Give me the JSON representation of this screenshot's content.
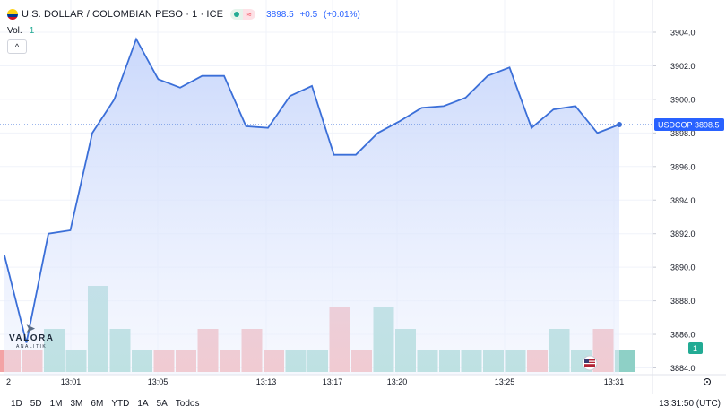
{
  "header": {
    "title": "U.S. DOLLAR / COLOMBIAN PESO · 1 · ICE",
    "last": "3898.5",
    "change": "+0.5",
    "change_pct": "(+0.01%)"
  },
  "volume": {
    "label": "Vol.",
    "value": "1"
  },
  "collapse_label": "^",
  "price_label": {
    "symbol": "USDCOP",
    "value": "3898.5"
  },
  "volume_badge": "1",
  "timeframes": [
    "1D",
    "5D",
    "1M",
    "3M",
    "6M",
    "YTD",
    "1A",
    "5A",
    "Todos"
  ],
  "clock": "13:31:50 (UTC)",
  "logo": {
    "word": "VALORA",
    "sub": "ANALITIK"
  },
  "colors": {
    "line": "#3b6fd8",
    "up": "#8ed0c6",
    "down": "#f3a3a5",
    "accent": "#2962ff"
  },
  "chart_data": {
    "type": "area",
    "x_ticks": [
      "2",
      "13:01",
      "13:05",
      "13:13",
      "13:17",
      "13:20",
      "13:25",
      "13:31"
    ],
    "y_ticks": [
      "3904.0",
      "3902.0",
      "3900.0",
      "3898.0",
      "3896.0",
      "3894.0",
      "3892.0",
      "3890.0",
      "3888.0",
      "3886.0",
      "3884.0"
    ],
    "ylim": [
      3884.0,
      3904.8
    ],
    "price": [
      3890.7,
      3885.5,
      3892.0,
      3892.2,
      3898.0,
      3900.0,
      3903.6,
      3901.2,
      3900.7,
      3901.4,
      3901.4,
      3898.4,
      3898.3,
      3900.2,
      3900.8,
      3896.7,
      3896.7,
      3898.0,
      3898.7,
      3899.5,
      3899.6,
      3900.1,
      3901.4,
      3901.9,
      3898.3,
      3899.4,
      3899.6,
      3898.0,
      3898.5
    ],
    "volume": [
      {
        "v": 1,
        "up": false
      },
      {
        "v": 1,
        "up": false
      },
      {
        "v": 2,
        "up": true
      },
      {
        "v": 1,
        "up": true
      },
      {
        "v": 4,
        "up": true
      },
      {
        "v": 2,
        "up": true
      },
      {
        "v": 1,
        "up": true
      },
      {
        "v": 1,
        "up": false
      },
      {
        "v": 1,
        "up": false
      },
      {
        "v": 2,
        "up": false
      },
      {
        "v": 1,
        "up": false
      },
      {
        "v": 2,
        "up": false
      },
      {
        "v": 1,
        "up": false
      },
      {
        "v": 1,
        "up": true
      },
      {
        "v": 1,
        "up": true
      },
      {
        "v": 3,
        "up": false
      },
      {
        "v": 1,
        "up": false
      },
      {
        "v": 3,
        "up": true
      },
      {
        "v": 2,
        "up": true
      },
      {
        "v": 1,
        "up": true
      },
      {
        "v": 1,
        "up": true
      },
      {
        "v": 1,
        "up": true
      },
      {
        "v": 1,
        "up": true
      },
      {
        "v": 1,
        "up": true
      },
      {
        "v": 1,
        "up": false
      },
      {
        "v": 2,
        "up": true
      },
      {
        "v": 1,
        "up": true
      },
      {
        "v": 2,
        "up": false
      },
      {
        "v": 1,
        "up": true
      }
    ]
  }
}
